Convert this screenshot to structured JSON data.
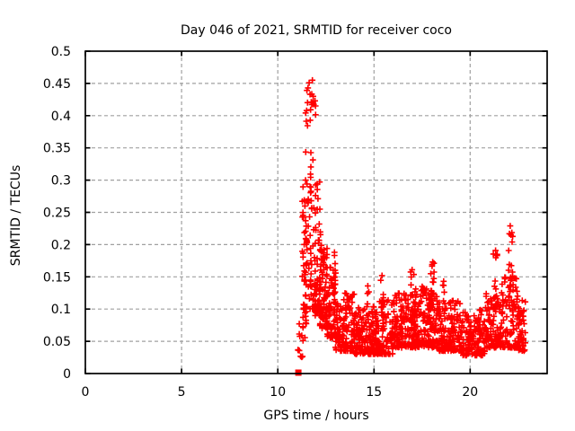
{
  "window": {
    "background": "#ffffff"
  },
  "chart_data": {
    "type": "scatter",
    "title": "Day 046 of 2021, SRMTID for receiver coco",
    "xlabel": "GPS time / hours",
    "ylabel": "SRMTID / TECUs",
    "xlim": [
      0,
      24
    ],
    "ylim": [
      0,
      0.5
    ],
    "xticks": {
      "values": [
        0,
        5,
        10,
        15,
        20
      ],
      "labels": [
        "0",
        "5",
        "10",
        "15",
        "20"
      ]
    },
    "yticks": {
      "values": [
        0,
        0.05,
        0.1,
        0.15,
        0.2,
        0.25,
        0.3,
        0.35,
        0.4,
        0.45,
        0.5
      ],
      "labels": [
        "0",
        "0.05",
        "0.1",
        "0.15",
        "0.2",
        "0.25",
        "0.3",
        "0.35",
        "0.4",
        "0.45",
        "0.5"
      ]
    },
    "grid": {
      "show": true,
      "color": "#a0a0a0",
      "dash": "4,3"
    },
    "axis_color": "#000000",
    "legend": "none",
    "series": [
      {
        "name": "SRMTID",
        "marker": "plus",
        "color": "#ff0000",
        "marker_size_px": 7,
        "time_span_hours": [
          11.05,
          22.9
        ],
        "zero_point": {
          "x": 11.07,
          "y": 0.0,
          "marker": "filled-square"
        },
        "peak_points": [
          [
            11.8,
            0.455
          ],
          [
            11.63,
            0.451
          ],
          [
            11.57,
            0.443
          ],
          [
            11.68,
            0.433
          ],
          [
            11.84,
            0.43
          ],
          [
            11.74,
            0.421
          ],
          [
            11.5,
            0.408
          ],
          [
            12.95,
            0.188
          ],
          [
            14.68,
            0.136
          ],
          [
            15.42,
            0.152
          ],
          [
            16.98,
            0.161
          ],
          [
            18.05,
            0.173
          ],
          [
            18.62,
            0.143
          ],
          [
            21.32,
            0.191
          ],
          [
            22.08,
            0.229
          ],
          [
            22.12,
            0.215
          ],
          [
            22.18,
            0.204
          ]
        ],
        "cloud_segments": [
          [
            11.05,
            11.3,
            10,
            0.025,
            0.095,
            1.3
          ],
          [
            11.28,
            11.5,
            45,
            0.05,
            0.3,
            1.5
          ],
          [
            11.45,
            11.75,
            40,
            0.1,
            0.455,
            1.2
          ],
          [
            11.7,
            12.0,
            40,
            0.1,
            0.44,
            1.6
          ],
          [
            11.95,
            12.25,
            55,
            0.09,
            0.3,
            1.8
          ],
          [
            12.2,
            12.6,
            70,
            0.07,
            0.2,
            1.5
          ],
          [
            12.55,
            13.05,
            70,
            0.055,
            0.165,
            1.6
          ],
          [
            12.88,
            13.02,
            10,
            0.11,
            0.19,
            1.1
          ],
          [
            13.0,
            14.0,
            130,
            0.035,
            0.125,
            1.7
          ],
          [
            14.0,
            15.0,
            130,
            0.03,
            0.105,
            1.7
          ],
          [
            14.6,
            14.75,
            8,
            0.08,
            0.135,
            1.2
          ],
          [
            15.0,
            16.0,
            130,
            0.03,
            0.115,
            1.7
          ],
          [
            15.35,
            15.5,
            8,
            0.09,
            0.15,
            1.2
          ],
          [
            16.0,
            17.3,
            170,
            0.04,
            0.125,
            1.6
          ],
          [
            16.9,
            17.2,
            16,
            0.09,
            0.162,
            1.3
          ],
          [
            17.3,
            18.3,
            140,
            0.04,
            0.135,
            1.6
          ],
          [
            17.95,
            18.15,
            14,
            0.1,
            0.175,
            1.2
          ],
          [
            18.3,
            19.5,
            150,
            0.035,
            0.115,
            1.7
          ],
          [
            18.55,
            18.7,
            8,
            0.08,
            0.14,
            1.2
          ],
          [
            19.5,
            20.8,
            150,
            0.028,
            0.1,
            1.7
          ],
          [
            20.8,
            21.6,
            95,
            0.04,
            0.125,
            1.6
          ],
          [
            21.2,
            21.42,
            14,
            0.09,
            0.19,
            1.3
          ],
          [
            21.6,
            22.5,
            95,
            0.04,
            0.15,
            1.6
          ],
          [
            22.0,
            22.22,
            16,
            0.12,
            0.232,
            1.2
          ],
          [
            22.5,
            22.9,
            50,
            0.035,
            0.115,
            1.5
          ]
        ]
      }
    ]
  }
}
